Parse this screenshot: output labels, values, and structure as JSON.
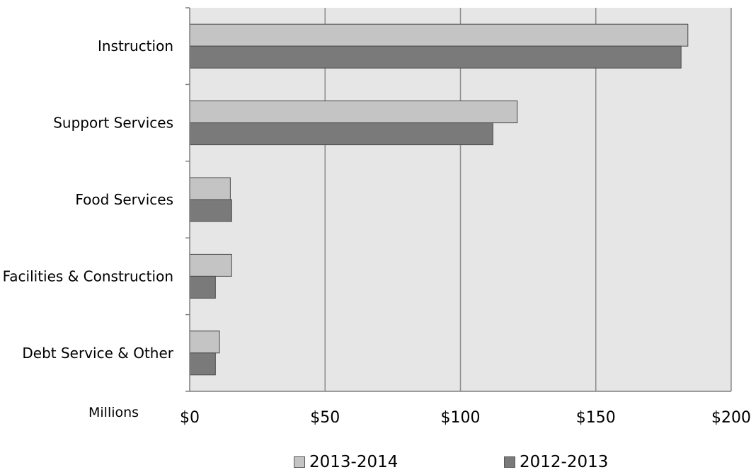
{
  "chart_data": {
    "type": "bar",
    "orientation": "horizontal",
    "categories": [
      "Instruction",
      "Support Services",
      "Food Services",
      "Facilities & Construction",
      "Debt Service & Other"
    ],
    "series": [
      {
        "name": "2013-2014",
        "color": "#c4c4c4",
        "values": [
          184,
          121,
          15,
          15.5,
          11
        ]
      },
      {
        "name": "2012-2013",
        "color": "#7a7a7a",
        "values": [
          181.5,
          112,
          15.5,
          9.5,
          9.5
        ]
      }
    ],
    "xlim": [
      0,
      200
    ],
    "x_ticks": [
      0,
      50,
      100,
      150,
      200
    ],
    "x_tick_labels": [
      "$0",
      "$50",
      "$100",
      "$150",
      "$200"
    ],
    "x_unit_label": "Millions",
    "grid": "vertical",
    "plot_background": "#e6e6e6",
    "legend_position": "bottom"
  }
}
